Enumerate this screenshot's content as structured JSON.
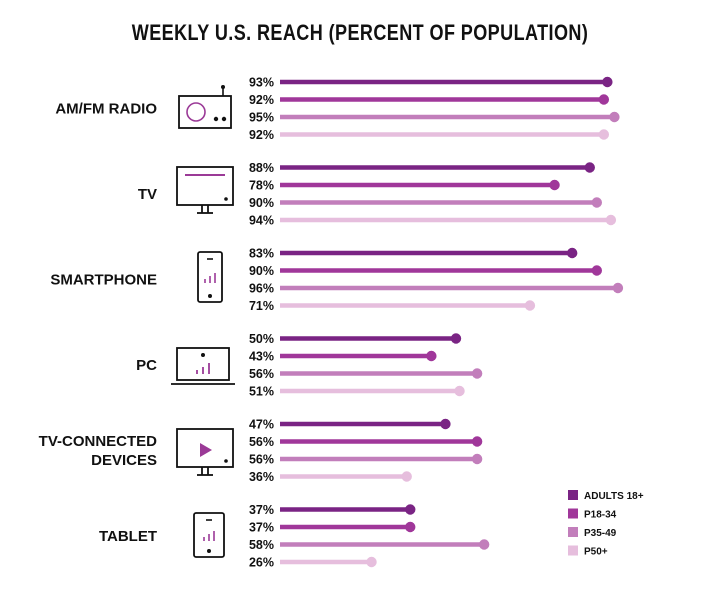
{
  "chart_data": {
    "type": "bar",
    "orientation": "horizontal",
    "style": "lollipop",
    "title": "WEEKLY U.S. REACH (PERCENT OF POPULATION)",
    "categories": [
      {
        "lines": [
          "AM/FM RADIO"
        ],
        "icon": "radio-icon"
      },
      {
        "lines": [
          "TV"
        ],
        "icon": "tv-icon"
      },
      {
        "lines": [
          "SMARTPHONE"
        ],
        "icon": "smartphone-icon"
      },
      {
        "lines": [
          "PC"
        ],
        "icon": "laptop-icon"
      },
      {
        "lines": [
          "TV-CONNECTED",
          "DEVICES"
        ],
        "icon": "tv-play-icon"
      },
      {
        "lines": [
          "TABLET"
        ],
        "icon": "tablet-icon"
      }
    ],
    "series": [
      {
        "name": "ADULTS 18+",
        "color": "#7a2484",
        "values": [
          93,
          88,
          83,
          50,
          47,
          37
        ]
      },
      {
        "name": "P18-34",
        "color": "#a0379a",
        "values": [
          92,
          78,
          90,
          43,
          56,
          37
        ]
      },
      {
        "name": "P35-49",
        "color": "#c27ebb",
        "values": [
          95,
          90,
          96,
          56,
          56,
          58
        ]
      },
      {
        "name": "P50+",
        "color": "#e6bedd",
        "values": [
          92,
          94,
          71,
          51,
          36,
          26
        ]
      }
    ],
    "value_suffix": "%",
    "xlim": [
      0,
      100
    ],
    "legend_position": "bottom-right",
    "grid": false
  }
}
